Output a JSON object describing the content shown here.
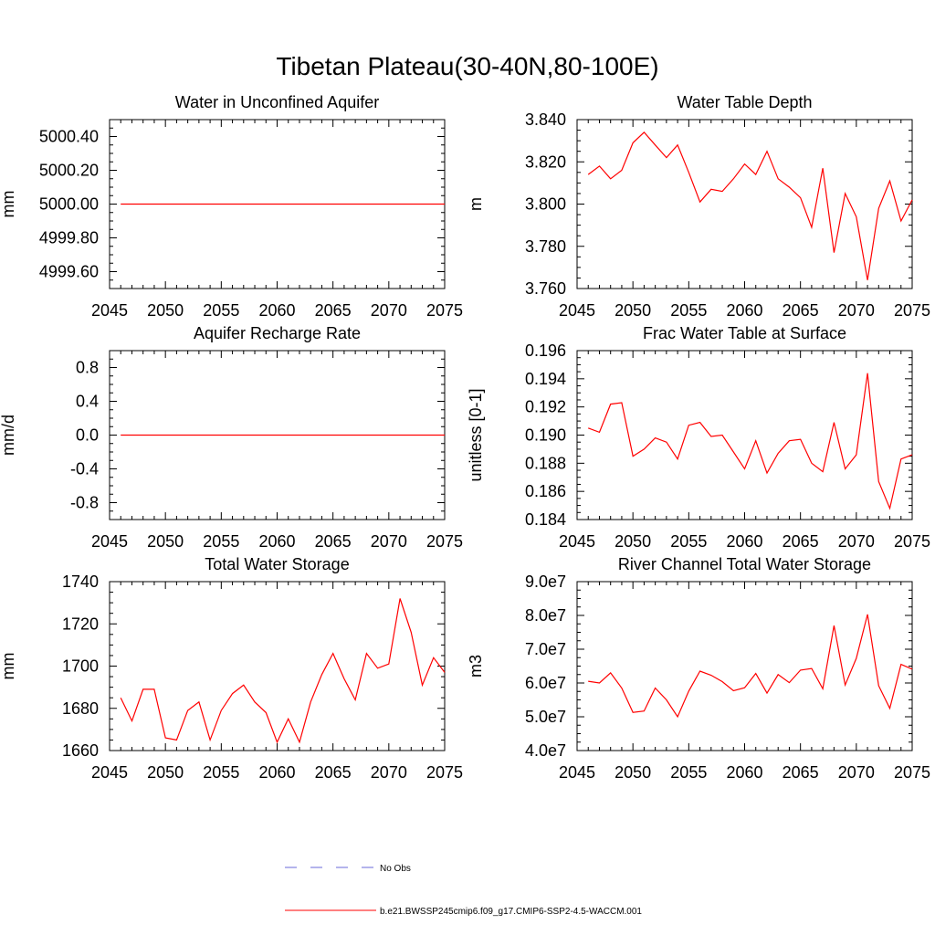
{
  "title": "Tibetan Plateau(30-40N,80-100E)",
  "legend": {
    "placement": "bottom-center",
    "entries": [
      {
        "label": "No Obs",
        "color": "#6a6ad8",
        "dash": true
      },
      {
        "label": "b.e21.BWSSP245cmip6.f09_g17.CMIP6-SSP2-4.5-WACCM.001",
        "color": "#ff0000",
        "dash": false
      }
    ]
  },
  "colors": {
    "series": "#ff0000"
  },
  "chart_data": [
    {
      "type": "line",
      "title": "Water in Unconfined Aquifer",
      "ylabel": "mm",
      "xlim": [
        2045,
        2075
      ],
      "ylim": [
        4999.5,
        5000.5
      ],
      "xticks": [
        "2045",
        "2050",
        "2055",
        "2060",
        "2065",
        "2070",
        "2075"
      ],
      "yticks": [
        "4999.60",
        "4999.80",
        "5000.00",
        "5000.20",
        "5000.40"
      ],
      "x": [
        2046,
        2047,
        2048,
        2049,
        2050,
        2051,
        2052,
        2053,
        2054,
        2055,
        2056,
        2057,
        2058,
        2059,
        2060,
        2061,
        2062,
        2063,
        2064,
        2065,
        2066,
        2067,
        2068,
        2069,
        2070,
        2071,
        2072,
        2073,
        2074,
        2075
      ],
      "values": [
        5000,
        5000,
        5000,
        5000,
        5000,
        5000,
        5000,
        5000,
        5000,
        5000,
        5000,
        5000,
        5000,
        5000,
        5000,
        5000,
        5000,
        5000,
        5000,
        5000,
        5000,
        5000,
        5000,
        5000,
        5000,
        5000,
        5000,
        5000,
        5000,
        5000
      ]
    },
    {
      "type": "line",
      "title": "Water Table Depth",
      "ylabel": "m",
      "xlim": [
        2045,
        2075
      ],
      "ylim": [
        3.76,
        3.84
      ],
      "xticks": [
        "2045",
        "2050",
        "2055",
        "2060",
        "2065",
        "2070",
        "2075"
      ],
      "yticks": [
        "3.760",
        "3.780",
        "3.800",
        "3.820",
        "3.840"
      ],
      "x": [
        2046,
        2047,
        2048,
        2049,
        2050,
        2051,
        2052,
        2053,
        2054,
        2055,
        2056,
        2057,
        2058,
        2059,
        2060,
        2061,
        2062,
        2063,
        2064,
        2065,
        2066,
        2067,
        2068,
        2069,
        2070,
        2071,
        2072,
        2073,
        2074,
        2075
      ],
      "values": [
        3.814,
        3.818,
        3.812,
        3.816,
        3.829,
        3.834,
        3.828,
        3.822,
        3.828,
        3.815,
        3.801,
        3.807,
        3.806,
        3.812,
        3.819,
        3.814,
        3.825,
        3.812,
        3.808,
        3.803,
        3.789,
        3.817,
        3.777,
        3.805,
        3.794,
        3.764,
        3.798,
        3.811,
        3.792,
        3.802
      ]
    },
    {
      "type": "line",
      "title": "Aquifer Recharge Rate",
      "ylabel": "mm/d",
      "xlim": [
        2045,
        2075
      ],
      "ylim": [
        -1,
        1
      ],
      "xticks": [
        "2045",
        "2050",
        "2055",
        "2060",
        "2065",
        "2070",
        "2075"
      ],
      "yticks": [
        "-0.8",
        "-0.4",
        "0.0",
        "0.4",
        "0.8"
      ],
      "x": [
        2046,
        2047,
        2048,
        2049,
        2050,
        2051,
        2052,
        2053,
        2054,
        2055,
        2056,
        2057,
        2058,
        2059,
        2060,
        2061,
        2062,
        2063,
        2064,
        2065,
        2066,
        2067,
        2068,
        2069,
        2070,
        2071,
        2072,
        2073,
        2074,
        2075
      ],
      "values": [
        0,
        0,
        0,
        0,
        0,
        0,
        0,
        0,
        0,
        0,
        0,
        0,
        0,
        0,
        0,
        0,
        0,
        0,
        0,
        0,
        0,
        0,
        0,
        0,
        0,
        0,
        0,
        0,
        0,
        0
      ]
    },
    {
      "type": "line",
      "title": "Frac Water Table at Surface",
      "ylabel": "unitless [0-1]",
      "xlim": [
        2045,
        2075
      ],
      "ylim": [
        0.184,
        0.196
      ],
      "xticks": [
        "2045",
        "2050",
        "2055",
        "2060",
        "2065",
        "2070",
        "2075"
      ],
      "yticks": [
        "0.184",
        "0.186",
        "0.188",
        "0.190",
        "0.192",
        "0.194",
        "0.196"
      ],
      "x": [
        2046,
        2047,
        2048,
        2049,
        2050,
        2051,
        2052,
        2053,
        2054,
        2055,
        2056,
        2057,
        2058,
        2059,
        2060,
        2061,
        2062,
        2063,
        2064,
        2065,
        2066,
        2067,
        2068,
        2069,
        2070,
        2071,
        2072,
        2073,
        2074,
        2075
      ],
      "values": [
        0.1905,
        0.1902,
        0.1922,
        0.1923,
        0.1885,
        0.189,
        0.1898,
        0.1895,
        0.1883,
        0.1907,
        0.1909,
        0.1899,
        0.19,
        0.1888,
        0.1876,
        0.1896,
        0.1873,
        0.1887,
        0.1896,
        0.1897,
        0.188,
        0.1874,
        0.1909,
        0.1876,
        0.1886,
        0.1944,
        0.1867,
        0.1848,
        0.1883,
        0.1886
      ]
    },
    {
      "type": "line",
      "title": "Total Water Storage",
      "ylabel": "mm",
      "xlim": [
        2045,
        2075
      ],
      "ylim": [
        1660,
        1740
      ],
      "xticks": [
        "2045",
        "2050",
        "2055",
        "2060",
        "2065",
        "2070",
        "2075"
      ],
      "yticks": [
        "1660",
        "1680",
        "1700",
        "1720",
        "1740"
      ],
      "x": [
        2046,
        2047,
        2048,
        2049,
        2050,
        2051,
        2052,
        2053,
        2054,
        2055,
        2056,
        2057,
        2058,
        2059,
        2060,
        2061,
        2062,
        2063,
        2064,
        2065,
        2066,
        2067,
        2068,
        2069,
        2070,
        2071,
        2072,
        2073,
        2074,
        2075
      ],
      "values": [
        1685,
        1674,
        1689,
        1689,
        1666,
        1665,
        1679,
        1683,
        1665,
        1679,
        1687,
        1691,
        1683,
        1678,
        1664,
        1675,
        1664,
        1683,
        1696,
        1706,
        1694,
        1684,
        1706,
        1699,
        1701,
        1732,
        1716,
        1691,
        1704,
        1697
      ]
    },
    {
      "type": "line",
      "title": "River Channel Total Water Storage",
      "ylabel": "m3",
      "xlim": [
        2045,
        2075
      ],
      "ylim": [
        40000000,
        90000000
      ],
      "xticks": [
        "2045",
        "2050",
        "2055",
        "2060",
        "2065",
        "2070",
        "2075"
      ],
      "yticks": [
        "4.0e7",
        "5.0e7",
        "6.0e7",
        "7.0e7",
        "8.0e7",
        "9.0e7"
      ],
      "x": [
        2046,
        2047,
        2048,
        2049,
        2050,
        2051,
        2052,
        2053,
        2054,
        2055,
        2056,
        2057,
        2058,
        2059,
        2060,
        2061,
        2062,
        2063,
        2064,
        2065,
        2066,
        2067,
        2068,
        2069,
        2070,
        2071,
        2072,
        2073,
        2074,
        2075
      ],
      "values": [
        60500000,
        60000000,
        63000000,
        58500000,
        51300000,
        51700000,
        58500000,
        55000000,
        50000000,
        57600000,
        63500000,
        62300000,
        60400000,
        57700000,
        58600000,
        62800000,
        57000000,
        62500000,
        60100000,
        63800000,
        64300000,
        58300000,
        77000000,
        59400000,
        67300000,
        80300000,
        59200000,
        52500000,
        65500000,
        64100000
      ]
    }
  ]
}
